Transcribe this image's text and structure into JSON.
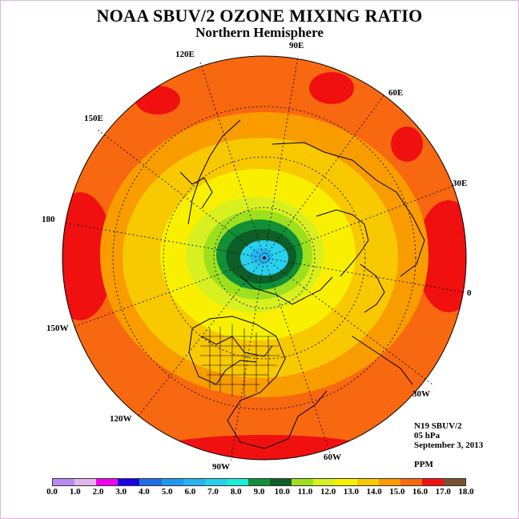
{
  "title": "NOAA SBUV/2 OZONE MIXING RATIO",
  "subtitle": "Northern Hemisphere",
  "longitude_labels": {
    "lon_90e": "90E",
    "lon_60e": "60E",
    "lon_30e": "30E",
    "lon_0": "0",
    "lon_30w": "30W",
    "lon_60w": "60W",
    "lon_90w": "90W",
    "lon_120w": "120W",
    "lon_150w": "150W",
    "lon_180": "180",
    "lon_150e": "150E",
    "lon_120e": "120E"
  },
  "info": {
    "instrument": "N19 SBUV/2",
    "pressure": "05 hPa",
    "date": "September 3, 2013",
    "units": "PPM"
  },
  "colorbar": {
    "ticks": [
      "0.0",
      "1.0",
      "2.0",
      "3.0",
      "4.0",
      "5.0",
      "6.0",
      "7.0",
      "8.0",
      "9.0",
      "10.0",
      "11.0",
      "12.0",
      "13.0",
      "14.0",
      "15.0",
      "16.0",
      "17.0",
      "18.0"
    ],
    "colors": [
      "#b98af0",
      "#e2b4ee",
      "#f000f0",
      "#1800e0",
      "#1e6fe8",
      "#1e98ee",
      "#28b4f0",
      "#28d0ee",
      "#18f0d8",
      "#119038",
      "#0e5e28",
      "#9ee01e",
      "#d8f020",
      "#f8f000",
      "#f8c800",
      "#f89c00",
      "#f86810",
      "#f01010",
      "#7a5030"
    ]
  }
}
